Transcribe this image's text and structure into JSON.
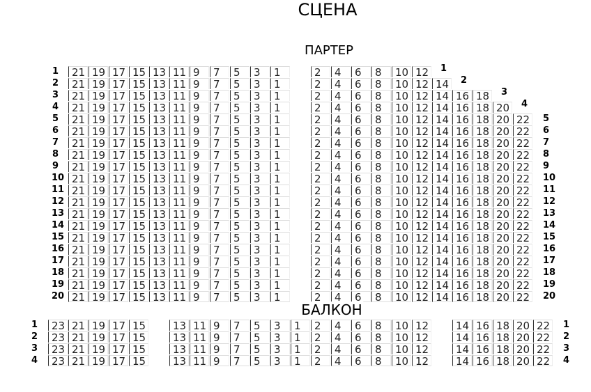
{
  "titles": {
    "stage": "СЦЕНА",
    "parter": "ПАРТЕР",
    "balcony": "БАЛКОН"
  },
  "parter": {
    "left_seats": [
      21,
      19,
      17,
      15,
      13,
      11,
      9,
      7,
      5,
      3,
      1
    ],
    "rows": [
      {
        "row": "1",
        "right_seats": [
          2,
          4,
          6,
          8,
          10,
          12
        ]
      },
      {
        "row": "2",
        "right_seats": [
          2,
          4,
          6,
          8,
          10,
          12,
          14
        ]
      },
      {
        "row": "3",
        "right_seats": [
          2,
          4,
          6,
          8,
          10,
          12,
          14,
          16,
          18
        ]
      },
      {
        "row": "4",
        "right_seats": [
          2,
          4,
          6,
          8,
          10,
          12,
          14,
          16,
          18,
          20
        ]
      },
      {
        "row": "5",
        "right_seats": [
          2,
          4,
          6,
          8,
          10,
          12,
          14,
          16,
          18,
          20,
          22
        ]
      },
      {
        "row": "6",
        "right_seats": [
          2,
          4,
          6,
          8,
          10,
          12,
          14,
          16,
          18,
          20,
          22
        ]
      },
      {
        "row": "7",
        "right_seats": [
          2,
          4,
          6,
          8,
          10,
          12,
          14,
          16,
          18,
          20,
          22
        ]
      },
      {
        "row": "8",
        "right_seats": [
          2,
          4,
          6,
          8,
          10,
          12,
          14,
          16,
          18,
          20,
          22
        ]
      },
      {
        "row": "9",
        "right_seats": [
          2,
          4,
          6,
          8,
          10,
          12,
          14,
          16,
          18,
          20,
          22
        ]
      },
      {
        "row": "10",
        "right_seats": [
          2,
          4,
          6,
          8,
          10,
          12,
          14,
          16,
          18,
          20,
          22
        ]
      },
      {
        "row": "11",
        "right_seats": [
          2,
          4,
          6,
          8,
          10,
          12,
          14,
          16,
          18,
          20,
          22
        ]
      },
      {
        "row": "12",
        "right_seats": [
          2,
          4,
          6,
          8,
          10,
          12,
          14,
          16,
          18,
          20,
          22
        ]
      },
      {
        "row": "13",
        "right_seats": [
          2,
          4,
          6,
          8,
          10,
          12,
          14,
          16,
          18,
          20,
          22
        ]
      },
      {
        "row": "14",
        "right_seats": [
          2,
          4,
          6,
          8,
          10,
          12,
          14,
          16,
          18,
          20,
          22
        ]
      },
      {
        "row": "15",
        "right_seats": [
          2,
          4,
          6,
          8,
          10,
          12,
          14,
          16,
          18,
          20,
          22
        ]
      },
      {
        "row": "16",
        "right_seats": [
          2,
          4,
          6,
          8,
          10,
          12,
          14,
          16,
          18,
          20,
          22
        ]
      },
      {
        "row": "17",
        "right_seats": [
          2,
          4,
          6,
          8,
          10,
          12,
          14,
          16,
          18,
          20,
          22
        ]
      },
      {
        "row": "18",
        "right_seats": [
          2,
          4,
          6,
          8,
          10,
          12,
          14,
          16,
          18,
          20,
          22
        ]
      },
      {
        "row": "19",
        "right_seats": [
          2,
          4,
          6,
          8,
          10,
          12,
          14,
          16,
          18,
          20,
          22
        ]
      },
      {
        "row": "20",
        "right_seats": [
          2,
          4,
          6,
          8,
          10,
          12,
          14,
          16,
          18,
          20,
          22
        ]
      }
    ]
  },
  "balcony": {
    "rows": [
      "1",
      "2",
      "3",
      "4"
    ],
    "left_seats": [
      23,
      21,
      19,
      17,
      15
    ],
    "center_seats": [
      13,
      11,
      9,
      7,
      5,
      3,
      1,
      2,
      4,
      6,
      8,
      10,
      12
    ],
    "right_seats": [
      14,
      16,
      18,
      20,
      22
    ]
  }
}
